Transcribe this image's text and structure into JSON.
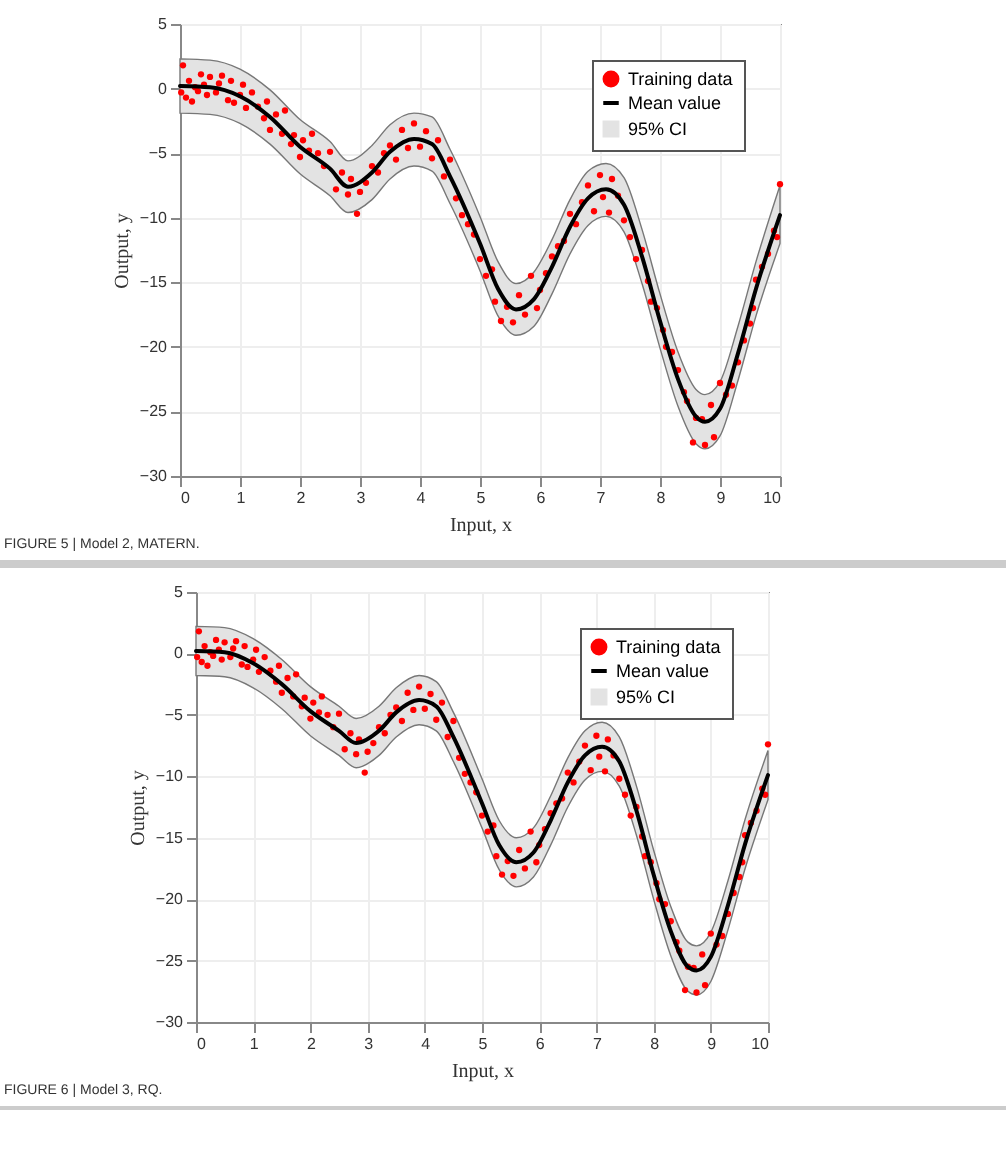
{
  "chart_data": [
    {
      "type": "line",
      "title": "FIGURE 5 | Model 2, MATERN.",
      "xlabel": "Input, x",
      "ylabel": "Output, y",
      "xlim": [
        0,
        10
      ],
      "ylim": [
        -30,
        5
      ],
      "xticks": [
        0,
        1,
        2,
        3,
        4,
        5,
        6,
        7,
        8,
        9,
        10
      ],
      "yticks": [
        -30,
        -25,
        -20,
        -15,
        -10,
        -5,
        0,
        5
      ],
      "grid": true,
      "legend": "top right",
      "line_style": "solid",
      "annotations": [
        "95% CI"
      ],
      "series": [
        {
          "name": "Training data",
          "type": "scatter",
          "marker": "circle",
          "color": "#ff0000",
          "x": [
            0.02,
            0.05,
            0.1,
            0.15,
            0.2,
            0.25,
            0.3,
            0.35,
            0.4,
            0.45,
            0.5,
            0.6,
            0.65,
            0.7,
            0.8,
            0.85,
            0.9,
            1.0,
            1.05,
            1.1,
            1.2,
            1.3,
            1.4,
            1.45,
            1.5,
            1.6,
            1.7,
            1.75,
            1.85,
            1.9,
            2.0,
            2.05,
            2.15,
            2.2,
            2.3,
            2.4,
            2.5,
            2.6,
            2.7,
            2.8,
            2.85,
            2.95,
            3.0,
            3.1,
            3.2,
            3.3,
            3.4,
            3.5,
            3.6,
            3.7,
            3.8,
            3.9,
            4.0,
            4.1,
            4.2,
            4.3,
            4.4,
            4.5,
            4.6,
            4.7,
            4.8,
            4.9,
            5.0,
            5.1,
            5.2,
            5.25,
            5.35,
            5.45,
            5.55,
            5.65,
            5.75,
            5.85,
            5.95,
            6.0,
            6.1,
            6.2,
            6.3,
            6.4,
            6.5,
            6.6,
            6.7,
            6.8,
            6.9,
            7.0,
            7.05,
            7.15,
            7.2,
            7.3,
            7.4,
            7.5,
            7.6,
            7.7,
            7.8,
            7.85,
            7.95,
            8.05,
            8.1,
            8.2,
            8.3,
            8.4,
            8.45,
            8.55,
            8.6,
            8.7,
            8.75,
            8.85,
            8.9,
            9.0,
            9.1,
            9.2,
            9.3,
            9.4,
            9.5,
            9.55,
            9.6,
            9.7,
            9.8,
            9.9,
            9.95,
            10.0
          ],
          "values": [
            -0.3,
            1.8,
            -0.7,
            0.6,
            -1.0,
            0.1,
            -0.2,
            1.1,
            0.3,
            -0.5,
            0.9,
            -0.3,
            0.4,
            1.0,
            -0.9,
            0.6,
            -1.1,
            -0.5,
            0.3,
            -1.5,
            -0.3,
            -1.4,
            -2.3,
            -1.0,
            -3.2,
            -2.0,
            -3.5,
            -1.7,
            -4.3,
            -3.6,
            -5.3,
            -4.0,
            -4.8,
            -3.5,
            -5.0,
            -6.0,
            -4.9,
            -7.8,
            -6.5,
            -8.2,
            -7.0,
            -9.7,
            -8.0,
            -7.3,
            -6.0,
            -6.5,
            -5.0,
            -4.4,
            -5.5,
            -3.2,
            -4.6,
            -2.7,
            -4.5,
            -3.3,
            -5.4,
            -4.0,
            -6.8,
            -5.5,
            -8.5,
            -9.8,
            -10.5,
            -11.3,
            -13.2,
            -14.5,
            -14.0,
            -16.5,
            -18.0,
            -16.9,
            -18.1,
            -16.0,
            -17.5,
            -14.5,
            -17.0,
            -15.6,
            -14.3,
            -13.0,
            -12.2,
            -11.8,
            -9.7,
            -10.5,
            -8.8,
            -7.5,
            -9.5,
            -6.7,
            -8.4,
            -9.6,
            -7.0,
            -8.3,
            -10.2,
            -11.5,
            -13.2,
            -12.5,
            -14.9,
            -16.5,
            -17.0,
            -18.7,
            -20.0,
            -20.4,
            -21.8,
            -23.5,
            -24.2,
            -27.4,
            -25.5,
            -25.6,
            -27.6,
            -24.5,
            -27.0,
            -22.8,
            -23.7,
            -23.0,
            -21.2,
            -19.5,
            -18.2,
            -17.0,
            -14.8,
            -13.8,
            -12.8,
            -11.0,
            -11.5,
            -7.4
          ]
        },
        {
          "name": "Mean value",
          "type": "line",
          "color": "#000000",
          "x": [
            0,
            0.5,
            1,
            1.5,
            2,
            2.5,
            2.8,
            3.2,
            3.5,
            3.9,
            4.2,
            4.5,
            5,
            5.3,
            5.6,
            5.9,
            6.2,
            6.5,
            6.8,
            7.1,
            7.4,
            7.7,
            8,
            8.3,
            8.6,
            8.75,
            9,
            9.3,
            9.6,
            10
          ],
          "values": [
            0.2,
            0.1,
            -0.6,
            -2.2,
            -4.5,
            -6.2,
            -7.6,
            -6.5,
            -4.9,
            -3.9,
            -4.3,
            -6.8,
            -12,
            -15.5,
            -17.1,
            -16.3,
            -13.8,
            -10.7,
            -8.5,
            -7.8,
            -9,
            -13,
            -18,
            -22.5,
            -25.4,
            -25.8,
            -24.8,
            -20.5,
            -15.5,
            -9.8
          ],
          "lower": [
            -1.9,
            -2.0,
            -2.7,
            -4.3,
            -6.6,
            -8.3,
            -9.6,
            -8.6,
            -7.0,
            -6.0,
            -6.4,
            -8.9,
            -14.1,
            -17.6,
            -19.1,
            -18.4,
            -15.9,
            -12.8,
            -10.6,
            -9.9,
            -11.1,
            -15.1,
            -20.1,
            -24.6,
            -27.5,
            -27.9,
            -26.9,
            -22.6,
            -17.6,
            -12.0
          ],
          "upper": [
            2.3,
            2.2,
            1.5,
            -0.1,
            -2.4,
            -4.1,
            -5.6,
            -4.4,
            -2.8,
            -1.9,
            -2.2,
            -4.7,
            -9.9,
            -13.4,
            -15.1,
            -14.2,
            -11.7,
            -8.6,
            -6.4,
            -5.8,
            -6.9,
            -10.9,
            -15.9,
            -20.4,
            -23.3,
            -23.7,
            -22.7,
            -18.4,
            -13.4,
            -7.5
          ]
        }
      ]
    },
    {
      "type": "line",
      "title": "FIGURE 6 | Model 3, RQ.",
      "xlabel": "Input, x",
      "ylabel": "Output, y",
      "xlim": [
        0,
        10
      ],
      "ylim": [
        -30,
        5
      ],
      "xticks": [
        0,
        1,
        2,
        3,
        4,
        5,
        6,
        7,
        8,
        9,
        10
      ],
      "yticks": [
        -30,
        -25,
        -20,
        -15,
        -10,
        -5,
        0,
        5
      ],
      "grid": true,
      "legend": "top right",
      "line_style": "solid",
      "annotations": [
        "95% CI"
      ],
      "series": [
        {
          "name": "Training data",
          "type": "scatter",
          "marker": "circle",
          "color": "#ff0000",
          "x": [
            0.02,
            0.05,
            0.1,
            0.15,
            0.2,
            0.25,
            0.3,
            0.35,
            0.4,
            0.45,
            0.5,
            0.6,
            0.65,
            0.7,
            0.8,
            0.85,
            0.9,
            1.0,
            1.05,
            1.1,
            1.2,
            1.3,
            1.4,
            1.45,
            1.5,
            1.6,
            1.7,
            1.75,
            1.85,
            1.9,
            2.0,
            2.05,
            2.15,
            2.2,
            2.3,
            2.4,
            2.5,
            2.6,
            2.7,
            2.8,
            2.85,
            2.95,
            3.0,
            3.1,
            3.2,
            3.3,
            3.4,
            3.5,
            3.6,
            3.7,
            3.8,
            3.9,
            4.0,
            4.1,
            4.2,
            4.3,
            4.4,
            4.5,
            4.6,
            4.7,
            4.8,
            4.9,
            5.0,
            5.1,
            5.2,
            5.25,
            5.35,
            5.45,
            5.55,
            5.65,
            5.75,
            5.85,
            5.95,
            6.0,
            6.1,
            6.2,
            6.3,
            6.4,
            6.5,
            6.6,
            6.7,
            6.8,
            6.9,
            7.0,
            7.05,
            7.15,
            7.2,
            7.3,
            7.4,
            7.5,
            7.6,
            7.7,
            7.8,
            7.85,
            7.95,
            8.05,
            8.1,
            8.2,
            8.3,
            8.4,
            8.45,
            8.55,
            8.6,
            8.7,
            8.75,
            8.85,
            8.9,
            9.0,
            9.1,
            9.2,
            9.3,
            9.4,
            9.5,
            9.55,
            9.6,
            9.7,
            9.8,
            9.9,
            9.95,
            10.0
          ],
          "values": [
            -0.3,
            1.8,
            -0.7,
            0.6,
            -1.0,
            0.1,
            -0.2,
            1.1,
            0.3,
            -0.5,
            0.9,
            -0.3,
            0.4,
            1.0,
            -0.9,
            0.6,
            -1.1,
            -0.5,
            0.3,
            -1.5,
            -0.3,
            -1.4,
            -2.3,
            -1.0,
            -3.2,
            -2.0,
            -3.5,
            -1.7,
            -4.3,
            -3.6,
            -5.3,
            -4.0,
            -4.8,
            -3.5,
            -5.0,
            -6.0,
            -4.9,
            -7.8,
            -6.5,
            -8.2,
            -7.0,
            -9.7,
            -8.0,
            -7.3,
            -6.0,
            -6.5,
            -5.0,
            -4.4,
            -5.5,
            -3.2,
            -4.6,
            -2.7,
            -4.5,
            -3.3,
            -5.4,
            -4.0,
            -6.8,
            -5.5,
            -8.5,
            -9.8,
            -10.5,
            -11.3,
            -13.2,
            -14.5,
            -14.0,
            -16.5,
            -18.0,
            -16.9,
            -18.1,
            -16.0,
            -17.5,
            -14.5,
            -17.0,
            -15.6,
            -14.3,
            -13.0,
            -12.2,
            -11.8,
            -9.7,
            -10.5,
            -8.8,
            -7.5,
            -9.5,
            -6.7,
            -8.4,
            -9.6,
            -7.0,
            -8.3,
            -10.2,
            -11.5,
            -13.2,
            -12.5,
            -14.9,
            -16.5,
            -17.0,
            -18.7,
            -20.0,
            -20.4,
            -21.8,
            -23.5,
            -24.2,
            -27.4,
            -25.5,
            -25.6,
            -27.6,
            -24.5,
            -27.0,
            -22.8,
            -23.7,
            -23.0,
            -21.2,
            -19.5,
            -18.2,
            -17.0,
            -14.8,
            -13.8,
            -12.8,
            -11.0,
            -11.5,
            -7.4
          ]
        },
        {
          "name": "Mean value",
          "type": "line",
          "color": "#000000",
          "x": [
            0,
            0.5,
            1,
            1.5,
            2,
            2.5,
            2.8,
            3.2,
            3.5,
            3.9,
            4.2,
            4.5,
            5,
            5.3,
            5.6,
            5.9,
            6.2,
            6.5,
            6.8,
            7.1,
            7.4,
            7.7,
            8,
            8.3,
            8.6,
            8.75,
            9,
            9.3,
            9.6,
            10
          ],
          "values": [
            0.2,
            0.1,
            -0.8,
            -2.5,
            -4.7,
            -6.3,
            -7.3,
            -6.3,
            -4.8,
            -3.8,
            -4.3,
            -6.8,
            -12.2,
            -15.6,
            -17.0,
            -16.2,
            -13.6,
            -10.5,
            -8.3,
            -7.6,
            -8.8,
            -12.8,
            -18,
            -22.6,
            -25.5,
            -25.8,
            -24.7,
            -20.5,
            -15.5,
            -9.9
          ],
          "lower": [
            -1.8,
            -1.9,
            -2.8,
            -4.5,
            -6.7,
            -8.3,
            -9.3,
            -8.3,
            -6.8,
            -5.8,
            -6.3,
            -8.8,
            -14.2,
            -17.6,
            -19.0,
            -18.2,
            -15.6,
            -12.5,
            -10.3,
            -9.6,
            -10.8,
            -14.8,
            -20.0,
            -24.6,
            -27.5,
            -27.8,
            -26.7,
            -22.5,
            -17.5,
            -11.9
          ],
          "upper": [
            2.2,
            2.1,
            1.2,
            -0.5,
            -2.7,
            -4.3,
            -5.3,
            -4.3,
            -2.8,
            -1.8,
            -2.3,
            -4.8,
            -10.2,
            -13.6,
            -15.0,
            -14.2,
            -11.6,
            -8.5,
            -6.3,
            -5.6,
            -6.8,
            -10.8,
            -16.0,
            -20.6,
            -23.5,
            -23.8,
            -22.7,
            -18.5,
            -13.5,
            -7.9
          ]
        }
      ]
    }
  ]
}
